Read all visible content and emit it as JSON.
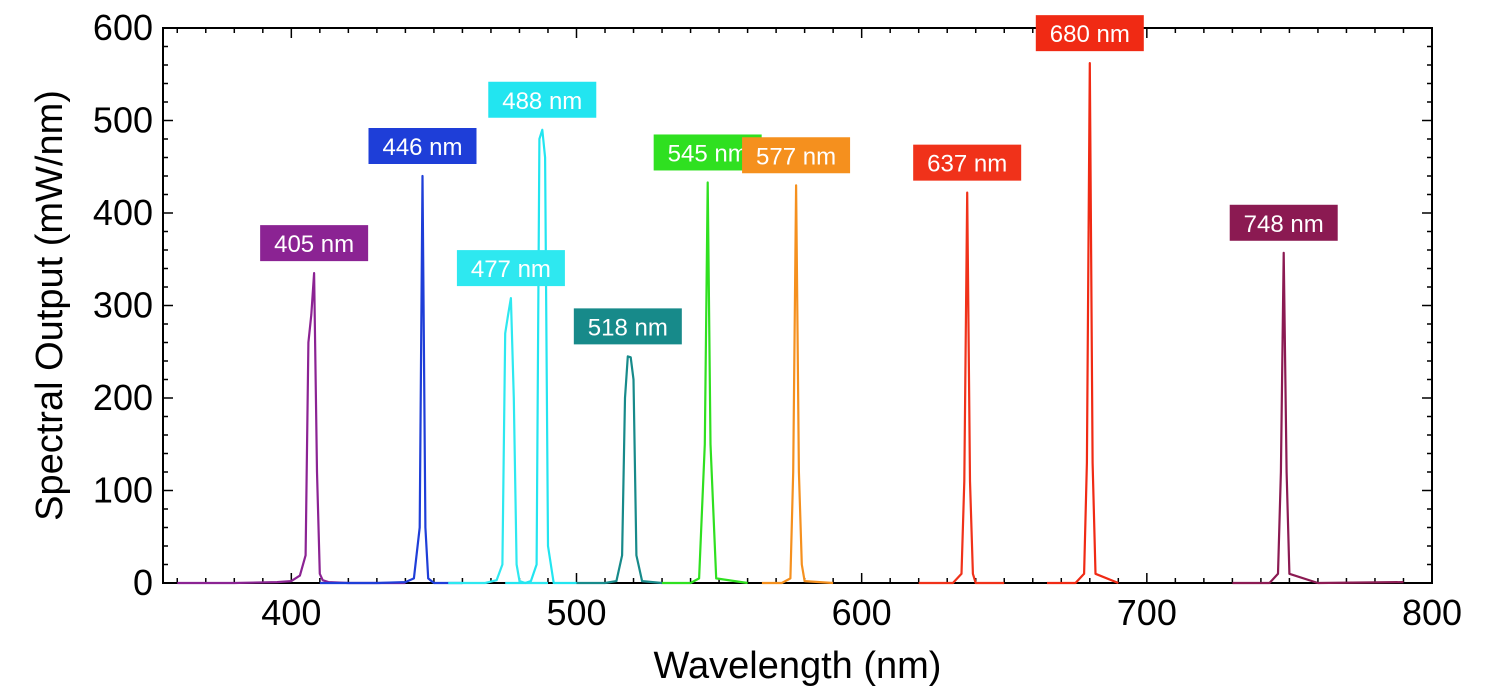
{
  "chart_data": {
    "type": "line",
    "title": "",
    "xlabel": "Wavelength (nm)",
    "ylabel": "Spectral Output (mW/nm)",
    "xlim": [
      355,
      800
    ],
    "ylim": [
      0,
      600
    ],
    "x_ticks": [
      400,
      500,
      600,
      700,
      800
    ],
    "y_ticks": [
      0,
      100,
      200,
      300,
      400,
      500,
      600
    ],
    "grid": false,
    "legend": "none",
    "series": [
      {
        "label": "405 nm",
        "color": "#8b2393",
        "x": [
          360,
          380,
          395,
          400,
          403,
          405,
          406,
          407,
          408,
          409,
          410,
          411,
          413,
          420,
          440
        ],
        "y": [
          0,
          0,
          1,
          2,
          8,
          30,
          260,
          290,
          335,
          120,
          10,
          3,
          1,
          0,
          0
        ]
      },
      {
        "label": "446 nm",
        "color": "#1e3ed8",
        "x": [
          410,
          430,
          440,
          443,
          445,
          446,
          447,
          448,
          450,
          460
        ],
        "y": [
          0,
          0,
          1,
          5,
          60,
          440,
          60,
          5,
          0,
          0
        ]
      },
      {
        "label": "477 nm",
        "color": "#2ee8f0",
        "x": [
          455,
          468,
          472,
          474,
          475,
          476,
          477,
          478,
          479,
          480,
          482,
          490
        ],
        "y": [
          0,
          0,
          3,
          20,
          270,
          290,
          308,
          200,
          20,
          2,
          0,
          0
        ]
      },
      {
        "label": "488 nm",
        "color": "#22e5f0",
        "x": [
          475,
          482,
          484,
          486,
          487,
          488,
          489,
          490,
          492,
          500
        ],
        "y": [
          0,
          0,
          2,
          20,
          480,
          490,
          460,
          40,
          0,
          0
        ]
      },
      {
        "label": "518 nm",
        "color": "#178a8a",
        "x": [
          500,
          510,
          514,
          516,
          517,
          518,
          519,
          520,
          521,
          523,
          530
        ],
        "y": [
          0,
          0,
          2,
          30,
          200,
          245,
          244,
          220,
          30,
          2,
          0
        ]
      },
      {
        "label": "545 nm",
        "color": "#2fe020",
        "x": [
          530,
          540,
          543,
          545,
          546,
          547,
          549,
          560
        ],
        "y": [
          0,
          0,
          5,
          150,
          433,
          150,
          5,
          0
        ]
      },
      {
        "label": "577 nm",
        "color": "#f5901e",
        "x": [
          565,
          572,
          575,
          576,
          577,
          578,
          579,
          580,
          590
        ],
        "y": [
          0,
          0,
          5,
          120,
          430,
          120,
          20,
          2,
          0
        ]
      },
      {
        "label": "637 nm",
        "color": "#f0321a",
        "x": [
          620,
          632,
          635,
          636,
          637,
          638,
          639,
          640,
          650
        ],
        "y": [
          0,
          0,
          10,
          110,
          422,
          110,
          10,
          0,
          0
        ]
      },
      {
        "label": "680 nm",
        "color": "#f02a14",
        "x": [
          665,
          675,
          678,
          679,
          680,
          681,
          682,
          690
        ],
        "y": [
          0,
          0,
          10,
          130,
          562,
          130,
          10,
          0
        ]
      },
      {
        "label": "748 nm",
        "color": "#8b1a52",
        "x": [
          730,
          743,
          746,
          747,
          748,
          749,
          750,
          760,
          790
        ],
        "y": [
          0,
          0,
          10,
          120,
          357,
          120,
          10,
          0,
          1
        ]
      }
    ]
  }
}
